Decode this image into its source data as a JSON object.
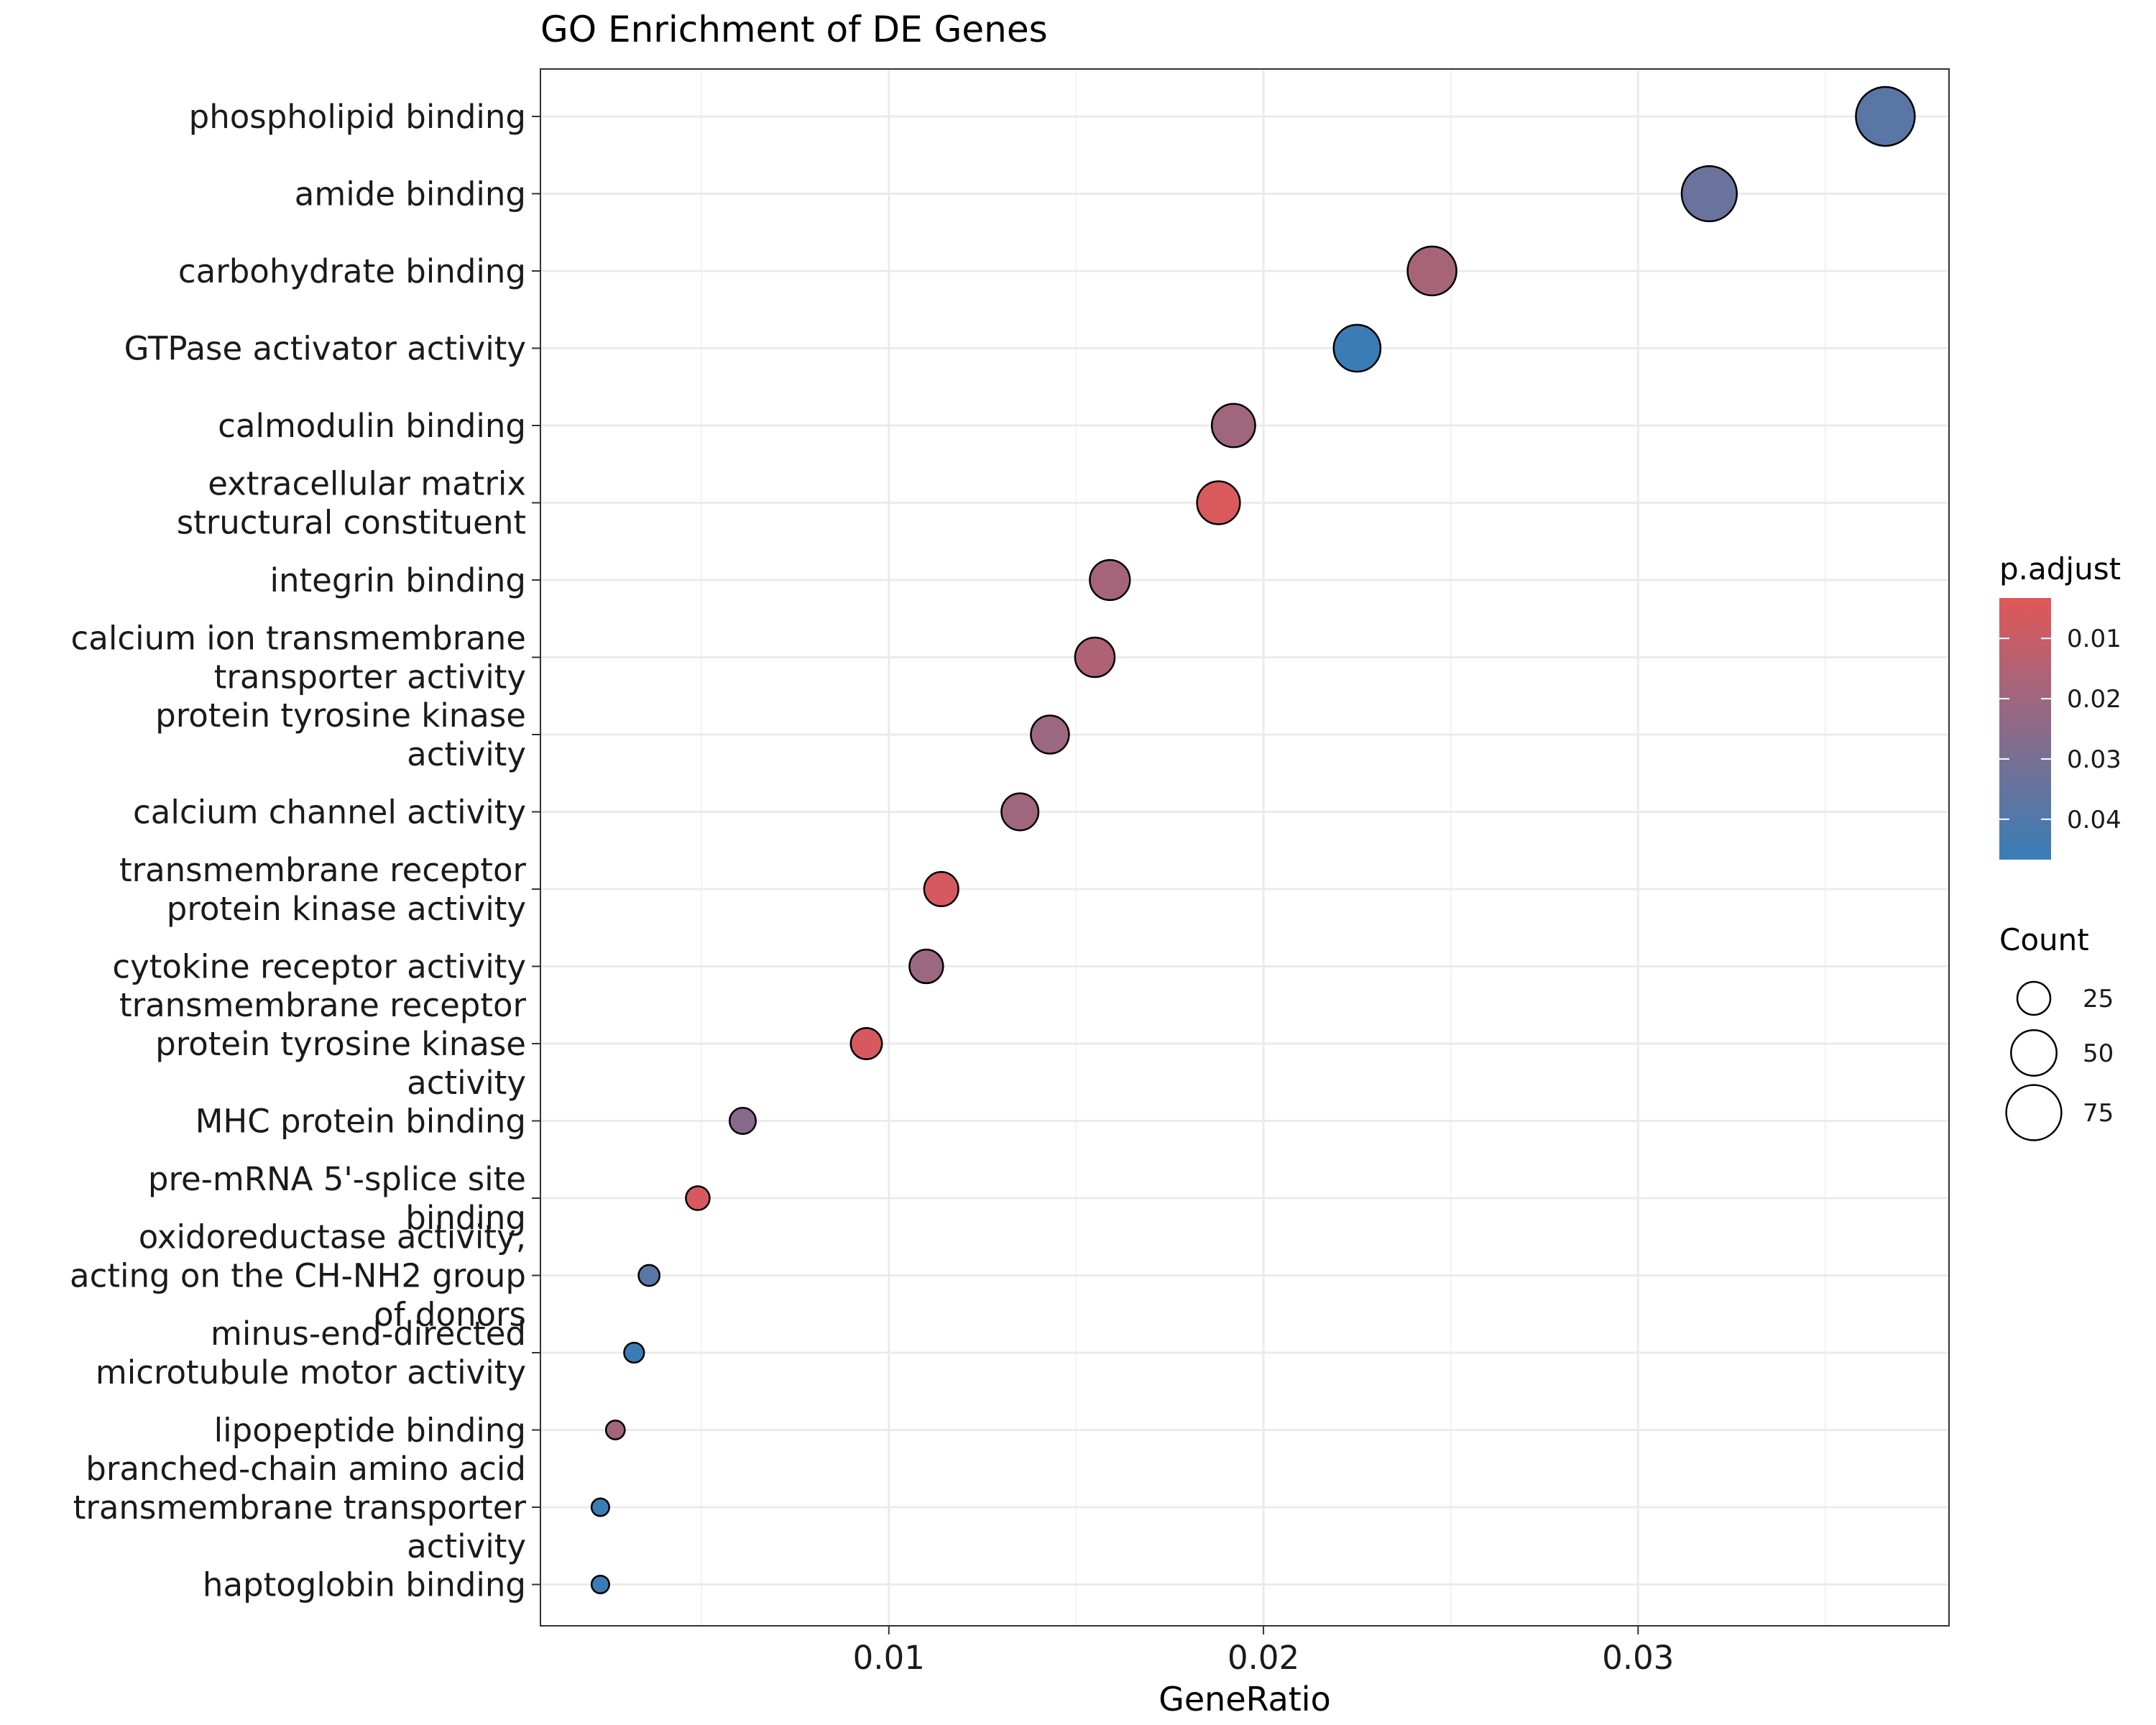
{
  "chart_data": {
    "type": "scatter",
    "title": "GO Enrichment of DE Genes",
    "xlabel": "GeneRatio",
    "ylabel": "",
    "xlim": [
      0.0007,
      0.0383
    ],
    "xticks": [
      0.01,
      0.02,
      0.03
    ],
    "xtick_labels": [
      "0.01",
      "0.02",
      "0.03"
    ],
    "grid": true,
    "legend_position": "right",
    "categories": [
      "phospholipid binding",
      "amide binding",
      "carbohydrate binding",
      "GTPase activator activity",
      "calmodulin binding",
      "extracellular matrix structural constituent",
      "integrin binding",
      "calcium ion transmembrane transporter activity",
      "protein tyrosine kinase activity",
      "calcium channel activity",
      "transmembrane receptor protein kinase activity",
      "cytokine receptor activity",
      "transmembrane receptor protein tyrosine kinase activity",
      "MHC protein binding",
      "pre-mRNA 5'-splice site binding",
      "oxidoreductase activity, acting on the CH-NH2 group of donors",
      "minus-end-directed microtubule motor activity",
      "lipopeptide binding",
      "branched-chain amino acid transmembrane transporter activity",
      "haptoglobin binding"
    ],
    "category_lines": [
      [
        "phospholipid binding"
      ],
      [
        "amide binding"
      ],
      [
        "carbohydrate binding"
      ],
      [
        "GTPase activator activity"
      ],
      [
        "calmodulin binding"
      ],
      [
        "extracellular matrix",
        "structural constituent"
      ],
      [
        "integrin binding"
      ],
      [
        "calcium ion transmembrane",
        "transporter activity"
      ],
      [
        "protein tyrosine kinase",
        "activity"
      ],
      [
        "calcium channel activity"
      ],
      [
        "transmembrane receptor",
        "protein kinase activity"
      ],
      [
        "cytokine receptor activity"
      ],
      [
        "transmembrane receptor",
        "protein tyrosine kinase",
        "activity"
      ],
      [
        "MHC protein binding"
      ],
      [
        "pre-mRNA 5'-splice site",
        "binding"
      ],
      [
        "oxidoreductase activity,",
        "acting on the CH-NH2 group",
        "of donors"
      ],
      [
        "minus-end-directed",
        "microtubule motor activity"
      ],
      [
        "lipopeptide binding"
      ],
      [
        "branched-chain amino acid",
        "transmembrane transporter",
        "activity"
      ],
      [
        "haptoglobin binding"
      ]
    ],
    "x": [
      0.0366,
      0.0319,
      0.0245,
      0.0225,
      0.0192,
      0.0188,
      0.0159,
      0.0155,
      0.0143,
      0.0135,
      0.0114,
      0.011,
      0.0094,
      0.0061,
      0.0049,
      0.0036,
      0.0032,
      0.0027,
      0.0023,
      0.0023
    ],
    "count": [
      86,
      75,
      58,
      53,
      45,
      44,
      38,
      37,
      34,
      32,
      27,
      26,
      22,
      15,
      12,
      9,
      8,
      7,
      6,
      6
    ],
    "p_adjust": [
      0.038,
      0.034,
      0.018,
      0.046,
      0.02,
      0.005,
      0.019,
      0.016,
      0.021,
      0.02,
      0.006,
      0.021,
      0.006,
      0.026,
      0.006,
      0.038,
      0.046,
      0.019,
      0.046,
      0.046
    ],
    "color_legend": {
      "title": "p.adjust",
      "ticks": [
        0.01,
        0.02,
        0.03,
        0.04
      ],
      "tick_labels": [
        "0.01",
        "0.02",
        "0.03",
        "0.04"
      ],
      "range": [
        0.0033,
        0.0467
      ],
      "low_color": "#E15759",
      "high_color": "#377EB8"
    },
    "size_legend": {
      "title": "Count",
      "values": [
        25,
        50,
        75
      ],
      "labels": [
        "25",
        "50",
        "75"
      ]
    }
  }
}
